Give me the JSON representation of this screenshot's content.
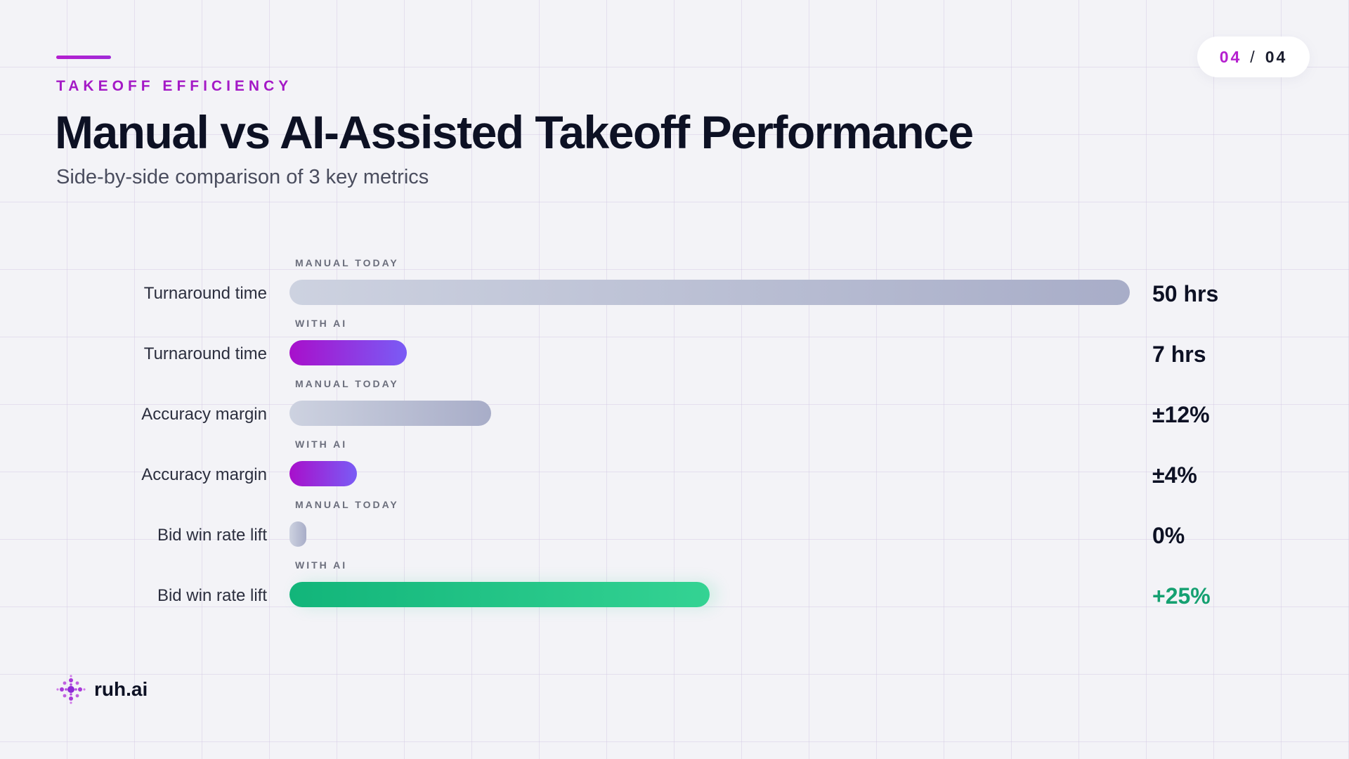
{
  "header": {
    "eyebrow": "TAKEOFF EFFICIENCY",
    "title": "Manual vs AI-Assisted Takeoff Performance",
    "subtitle": "Side-by-side comparison of 3 key metrics"
  },
  "pager": {
    "current": "04",
    "separator": "/",
    "total": "04"
  },
  "brand": {
    "name": "ruh.ai",
    "icon": "ruh-dots-logo"
  },
  "colors": {
    "accent": "#b51fcf",
    "manual_bar": "#b4b9cf",
    "ai_bar": "#9d1fd6",
    "positive": "#15a071"
  },
  "chart_data": {
    "type": "bar",
    "orientation": "horizontal",
    "rows": [
      {
        "metric": "Turnaround time",
        "series": "MANUAL TODAY",
        "value": 50,
        "display": "50 hrs",
        "style": "manual"
      },
      {
        "metric": "Turnaround time",
        "series": "WITH AI",
        "value": 7,
        "display": "7 hrs",
        "style": "ai"
      },
      {
        "metric": "Accuracy margin",
        "series": "MANUAL TODAY",
        "value": 12,
        "display": "±12%",
        "style": "manual"
      },
      {
        "metric": "Accuracy margin",
        "series": "WITH AI",
        "value": 4,
        "display": "±4%",
        "style": "ai"
      },
      {
        "metric": "Bid win rate lift",
        "series": "MANUAL TODAY",
        "value": 0,
        "display": "0%",
        "style": "manual"
      },
      {
        "metric": "Bid win rate lift",
        "series": "WITH AI",
        "value": 25,
        "display": "+25%",
        "style": "ai-positive"
      }
    ],
    "bar_scale_fraction": [
      1.0,
      0.14,
      0.24,
      0.08,
      0.02,
      0.5
    ]
  }
}
